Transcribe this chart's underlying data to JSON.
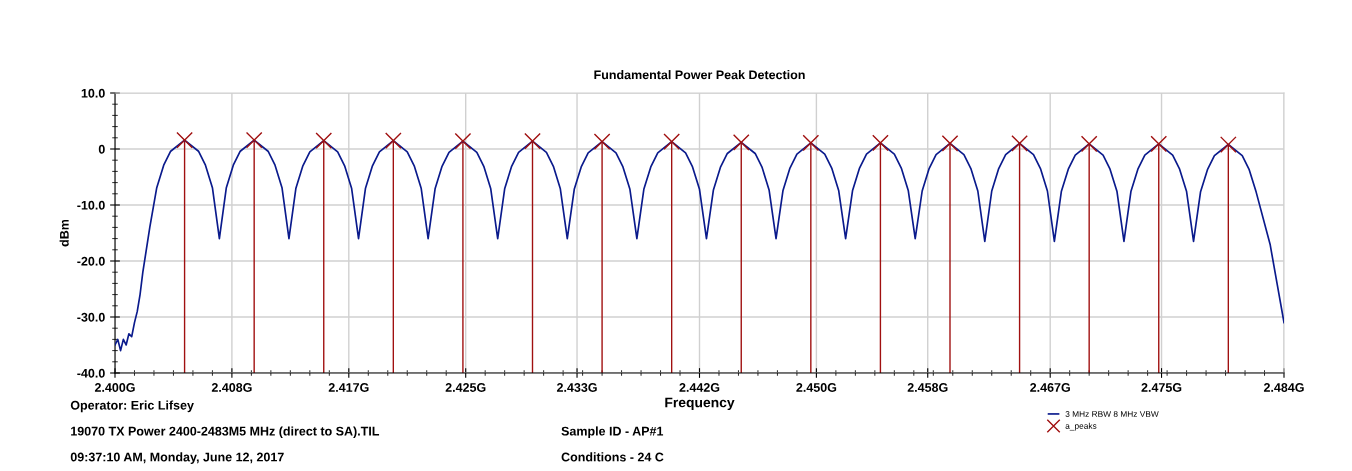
{
  "chart_data": {
    "type": "line",
    "title": "Fundamental Power Peak Detection",
    "xlabel": "Frequency",
    "ylabel": "dBm",
    "xlim": [
      2.4,
      2.484
    ],
    "ylim": [
      -40,
      10
    ],
    "xticks": [
      {
        "value": 2.4,
        "label": "2.400G"
      },
      {
        "value": 2.4084,
        "label": "2.408G"
      },
      {
        "value": 2.4168,
        "label": "2.417G"
      },
      {
        "value": 2.4252,
        "label": "2.425G"
      },
      {
        "value": 2.4332,
        "label": "2.433G"
      },
      {
        "value": 2.442,
        "label": "2.442G"
      },
      {
        "value": 2.4504,
        "label": "2.450G"
      },
      {
        "value": 2.4584,
        "label": "2.458G"
      },
      {
        "value": 2.4672,
        "label": "2.467G"
      },
      {
        "value": 2.4752,
        "label": "2.475G"
      },
      {
        "value": 2.484,
        "label": "2.484G"
      }
    ],
    "yticks": [
      {
        "value": 10,
        "label": "10.0"
      },
      0,
      {
        "value": -10,
        "label": "-10.0"
      },
      {
        "value": -20,
        "label": "-20.0"
      },
      {
        "value": -30,
        "label": "-30.0"
      },
      {
        "value": -40,
        "label": "-40.0"
      }
    ],
    "grid": true,
    "legend": "bottom right",
    "annotations": [
      "Operator: Eric Lifsey",
      "19070 TX Power 2400-2483M5 MHz (direct to SA).TIL",
      "09:37:10 AM, Monday, June 12, 2017",
      "Sample ID - AP#1",
      "Conditions - 24 C"
    ],
    "series": [
      {
        "name": "3 MHz RBW 8 MHz VBW",
        "color": "#0a1a8c",
        "marker": "none",
        "x": [
          2.4,
          2.4002,
          2.4004,
          2.4006,
          2.4008,
          2.401,
          2.4012,
          2.4014,
          2.4016,
          2.4018,
          2.402,
          2.4025,
          2.403,
          2.4035,
          2.404,
          2.405,
          2.406,
          2.4065,
          2.407,
          2.4075,
          2.408,
          2.4085,
          2.409,
          2.41,
          2.411,
          2.4115,
          2.412,
          2.4125,
          2.413,
          2.4135,
          2.414,
          2.415,
          2.416,
          2.4165,
          2.417,
          2.4175,
          2.418,
          2.4185,
          2.419,
          2.42,
          2.421,
          2.4215,
          2.422,
          2.4225,
          2.423,
          2.4235,
          2.424,
          2.425,
          2.426,
          2.4265,
          2.427,
          2.4275,
          2.428,
          2.4285,
          2.429,
          2.43,
          2.431,
          2.4315,
          2.432,
          2.4325,
          2.433,
          2.4335,
          2.434,
          2.435,
          2.436,
          2.4365,
          2.437,
          2.4375,
          2.438,
          2.4385,
          2.439,
          2.44,
          2.441,
          2.4415,
          2.442,
          2.4425,
          2.443,
          2.4435,
          2.444,
          2.445,
          2.446,
          2.4465,
          2.447,
          2.4475,
          2.448,
          2.4485,
          2.449,
          2.45,
          2.451,
          2.4515,
          2.452,
          2.4525,
          2.453,
          2.4535,
          2.454,
          2.455,
          2.456,
          2.4565,
          2.457,
          2.4575,
          2.458,
          2.4585,
          2.459,
          2.46,
          2.461,
          2.4615,
          2.462,
          2.4625,
          2.463,
          2.4635,
          2.464,
          2.465,
          2.466,
          2.4665,
          2.467,
          2.4675,
          2.468,
          2.4685,
          2.469,
          2.47,
          2.471,
          2.4715,
          2.472,
          2.4725,
          2.473,
          2.4735,
          2.474,
          2.475,
          2.476,
          2.4765,
          2.477,
          2.4775,
          2.478,
          2.4785,
          2.479,
          2.48,
          2.481,
          2.4815,
          2.482,
          2.483,
          2.4835,
          2.484
        ],
        "values": [
          -35,
          -34,
          -36,
          -34,
          -35,
          -33,
          -33.5,
          -31,
          -29,
          -26,
          -22,
          -14,
          -6.9,
          -2.9,
          -0.4,
          1.6,
          -0.4,
          -2.9,
          -6.9,
          -16,
          -6.9,
          -2.9,
          -0.4,
          1.6,
          -0.4,
          -2.9,
          -6.9,
          -16,
          -7.0,
          -3.0,
          -0.5,
          1.5,
          -0.5,
          -3.0,
          -7.0,
          -16,
          -7.0,
          -3.0,
          -0.5,
          1.5,
          -0.5,
          -3.0,
          -7.0,
          -16,
          -7.1,
          -3.1,
          -0.6,
          1.4,
          -0.6,
          -3.1,
          -7.1,
          -16,
          -7.1,
          -3.1,
          -0.6,
          1.4,
          -0.6,
          -3.1,
          -7.1,
          -16,
          -7.2,
          -3.2,
          -0.7,
          1.3,
          -0.7,
          -3.2,
          -7.2,
          -16,
          -7.2,
          -3.2,
          -0.7,
          1.3,
          -0.7,
          -3.2,
          -7.2,
          -16,
          -7.3,
          -3.3,
          -0.8,
          1.2,
          -0.8,
          -3.3,
          -7.3,
          -16,
          -7.4,
          -3.4,
          -0.9,
          1.1,
          -0.9,
          -3.4,
          -7.4,
          -16,
          -7.4,
          -3.4,
          -0.9,
          1.1,
          -0.9,
          -3.4,
          -7.4,
          -16,
          -7.5,
          -3.5,
          -1.0,
          1.0,
          -1.0,
          -3.5,
          -7.5,
          -16.5,
          -7.5,
          -3.5,
          -1.0,
          1.0,
          -1.0,
          -3.5,
          -7.5,
          -16.5,
          -7.6,
          -3.6,
          -1.1,
          0.9,
          -1.1,
          -3.6,
          -7.6,
          -16.5,
          -7.6,
          -3.6,
          -1.1,
          0.9,
          -1.1,
          -3.6,
          -7.6,
          -16.5,
          -7.7,
          -3.7,
          -1.2,
          0.8,
          -1.2,
          -3.7,
          -7.7,
          -17,
          -24,
          -31
        ]
      },
      {
        "name": "a_peaks",
        "type": "lollipop",
        "color": "#a01010",
        "marker": "cross",
        "x": [
          2.405,
          2.41,
          2.415,
          2.42,
          2.425,
          2.43,
          2.435,
          2.44,
          2.445,
          2.45,
          2.455,
          2.46,
          2.465,
          2.47,
          2.475,
          2.48
        ],
        "values": [
          1.6,
          1.6,
          1.5,
          1.5,
          1.4,
          1.4,
          1.3,
          1.3,
          1.2,
          1.1,
          1.1,
          1.0,
          1.0,
          0.9,
          0.9,
          0.8
        ]
      }
    ]
  }
}
